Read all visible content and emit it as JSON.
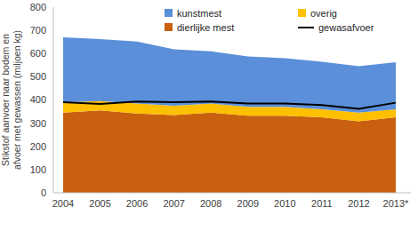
{
  "chart_data": {
    "type": "area",
    "stacked": true,
    "y_label": "Stikstof aanvoer naar bodem en afvoer met gewassen (miljoen kg)",
    "categories": [
      "2004",
      "2005",
      "2006",
      "2007",
      "2008",
      "2009",
      "2010",
      "2011",
      "2012",
      "2013*"
    ],
    "series": [
      {
        "name": "kunstmest",
        "color": "#5b8fd9",
        "values": [
          280,
          267,
          267,
          243,
          225,
          218,
          210,
          205,
          200,
          203
        ]
      },
      {
        "name": "overig",
        "color": "#ffc000",
        "values": [
          45,
          40,
          43,
          40,
          40,
          38,
          38,
          35,
          37,
          35
        ]
      },
      {
        "name": "dierlijke mest",
        "color": "#c8600f",
        "values": [
          345,
          355,
          342,
          335,
          345,
          332,
          332,
          325,
          308,
          325
        ]
      },
      {
        "name": "gewasafvoer",
        "type": "line",
        "color": "#000000",
        "values": [
          390,
          383,
          393,
          390,
          393,
          385,
          385,
          378,
          362,
          388
        ]
      }
    ],
    "ylim": [
      0,
      800
    ],
    "yticks": [
      0,
      100,
      200,
      300,
      400,
      500,
      600,
      700,
      800
    ],
    "grid": false,
    "legend": "top"
  }
}
